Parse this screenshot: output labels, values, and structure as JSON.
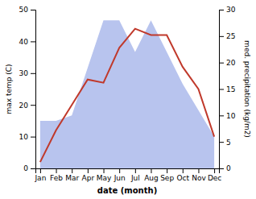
{
  "chart_data": {
    "type": "line",
    "xlabel": "date (month)",
    "ylabel": "max temp (C)",
    "y2label": "med. precipitation (kg/m2)",
    "categories": [
      "Jan",
      "Feb",
      "Mar",
      "Apr",
      "May",
      "Jun",
      "Jul",
      "Aug",
      "Sep",
      "Oct",
      "Nov",
      "Dec"
    ],
    "series": [
      {
        "type": "area",
        "axis": "y2",
        "color": "#b8c4ee",
        "values": [
          9,
          9,
          10,
          19,
          28,
          28,
          22,
          28,
          22,
          16,
          11,
          6
        ]
      },
      {
        "type": "line",
        "color": "#c0392b",
        "values": [
          2,
          12,
          20,
          28,
          27,
          38,
          44,
          42,
          42,
          32,
          25,
          10
        ]
      }
    ],
    "ylim": [
      0,
      50
    ],
    "yticks": [
      0,
      10,
      20,
      30,
      40,
      50
    ],
    "y2lim": [
      0,
      30
    ],
    "y2ticks": [
      0,
      5,
      10,
      15,
      20,
      25,
      30
    ],
    "grid": false
  }
}
